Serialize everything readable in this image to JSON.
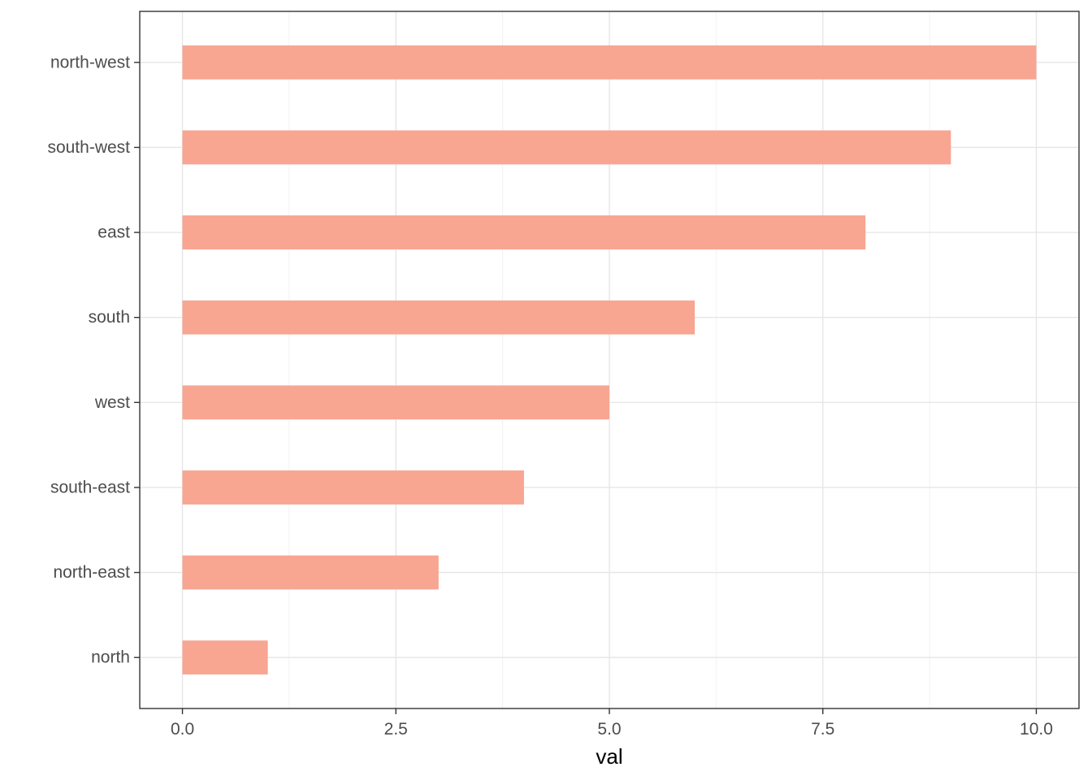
{
  "chart_data": {
    "type": "bar",
    "orientation": "horizontal",
    "categories": [
      "north",
      "north-east",
      "south-east",
      "west",
      "south",
      "east",
      "south-west",
      "north-west"
    ],
    "values": [
      1,
      3,
      4,
      5,
      6,
      8,
      9,
      10
    ],
    "xlabel": "val",
    "ylabel": "",
    "title": "",
    "xlim": [
      -0.5,
      10.5
    ],
    "x_ticks": [
      0,
      2.5,
      5,
      7.5,
      10
    ],
    "x_tick_labels": [
      "0.0",
      "2.5",
      "5.0",
      "7.5",
      "10.0"
    ],
    "grid": true,
    "legend": "none",
    "colors": {
      "bar": "#F8A592",
      "panel_border": "#333333",
      "grid": "#e6e6e6"
    }
  }
}
